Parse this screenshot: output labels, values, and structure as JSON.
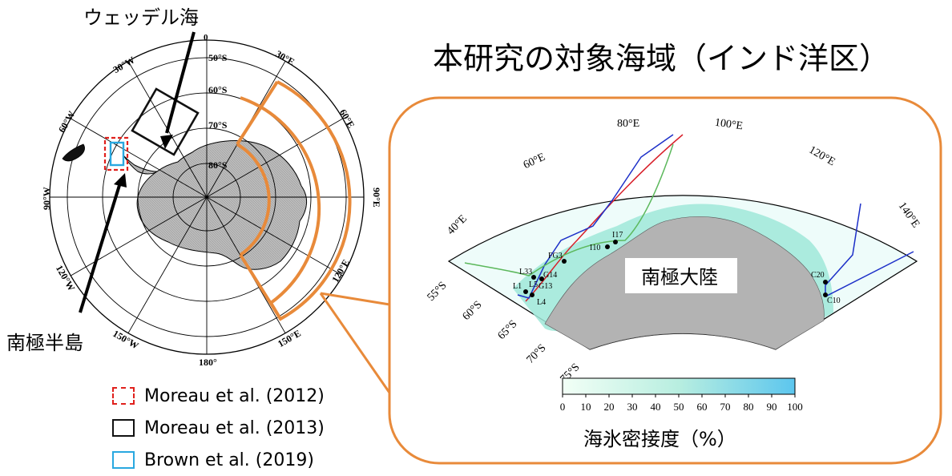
{
  "polar_map": {
    "callout_weddell": "ウェッデル海",
    "callout_peninsula": "南極半島",
    "lon_labels": [
      "0",
      "30°E",
      "60°E",
      "90°E",
      "120°E",
      "150°E",
      "180°",
      "150°W",
      "120°W",
      "90°W",
      "60°W",
      "30°W"
    ],
    "lat_labels": [
      "50°S",
      "60°S",
      "70°S",
      "80°S"
    ]
  },
  "title": "本研究の対象海域（インド洋区）",
  "inset": {
    "continent_label": "南極大陸",
    "lon_labels": [
      "40°E",
      "60°E",
      "80°E",
      "100°E",
      "120°E",
      "140°E"
    ],
    "lat_labels": [
      "55°S",
      "60°S",
      "65°S",
      "70°S",
      "75°S"
    ],
    "stations": [
      "FG3",
      "I10",
      "I17",
      "L33",
      "L5",
      "G14",
      "L1",
      "G13",
      "L4",
      "C20",
      "C10"
    ],
    "colorbar": {
      "ticks": [
        "0",
        "10",
        "20",
        "30",
        "40",
        "50",
        "60",
        "70",
        "80",
        "90",
        "100"
      ],
      "label": "海氷密接度（%）"
    }
  },
  "legend": [
    {
      "label": "Moreau et al. (2012)",
      "color": "#e0201c",
      "style": "dashed"
    },
    {
      "label": "Moreau et al. (2013)",
      "color": "#111111",
      "style": "solid"
    },
    {
      "label": "Brown et al. (2019)",
      "color": "#29a8e0",
      "style": "solid"
    }
  ],
  "colors": {
    "highlight": "#e88a3a",
    "sea_ice_low": "#eafff5",
    "sea_ice_high": "#5bc6ee",
    "land": "#b3b3b3",
    "track_red": "#d8202a",
    "track_blue": "#1c2fc8",
    "track_green": "#5cb85c"
  }
}
